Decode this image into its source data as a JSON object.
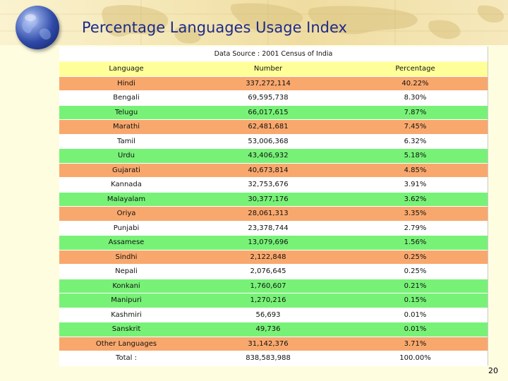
{
  "title": "Percentage Languages Usage Index",
  "source": "Data Source : 2001 Census of India",
  "columns": [
    "Language",
    "Number",
    "Percentage"
  ],
  "rows": [
    {
      "language": "Hindi",
      "number": "337,272,114",
      "percentage": "40.22%",
      "color": "#f9a86d"
    },
    {
      "language": "Bengali",
      "number": "69,595,738",
      "percentage": "8.30%",
      "color": "#ffffff"
    },
    {
      "language": "Telugu",
      "number": "66,017,615",
      "percentage": "7.87%",
      "color": "#77f277"
    },
    {
      "language": "Marathi",
      "number": "62,481,681",
      "percentage": "7.45%",
      "color": "#f9a86d"
    },
    {
      "language": "Tamil",
      "number": "53,006,368",
      "percentage": "6.32%",
      "color": "#ffffff"
    },
    {
      "language": "Urdu",
      "number": "43,406,932",
      "percentage": "5.18%",
      "color": "#77f277"
    },
    {
      "language": "Gujarati",
      "number": "40,673,814",
      "percentage": "4.85%",
      "color": "#f9a86d"
    },
    {
      "language": "Kannada",
      "number": "32,753,676",
      "percentage": "3.91%",
      "color": "#ffffff"
    },
    {
      "language": "Malayalam",
      "number": "30,377,176",
      "percentage": "3.62%",
      "color": "#77f277"
    },
    {
      "language": "Oriya",
      "number": "28,061,313",
      "percentage": "3.35%",
      "color": "#f9a86d"
    },
    {
      "language": "Punjabi",
      "number": "23,378,744",
      "percentage": "2.79%",
      "color": "#ffffff"
    },
    {
      "language": "Assamese",
      "number": "13,079,696",
      "percentage": "1.56%",
      "color": "#77f277"
    },
    {
      "language": "Sindhi",
      "number": "2,122,848",
      "percentage": "0.25%",
      "color": "#f9a86d"
    },
    {
      "language": "Nepali",
      "number": "2,076,645",
      "percentage": "0.25%",
      "color": "#ffffff"
    },
    {
      "language": "Konkani",
      "number": "1,760,607",
      "percentage": "0.21%",
      "color": "#77f277"
    },
    {
      "language": "Manipuri",
      "number": "1,270,216",
      "percentage": "0.15%",
      "color": "#77f277"
    },
    {
      "language": "Kashmiri",
      "number": "56,693",
      "percentage": "0.01%",
      "color": "#ffffff"
    },
    {
      "language": "Sanskrit",
      "number": "49,736",
      "percentage": "0.01%",
      "color": "#77f277"
    },
    {
      "language": "Other Languages",
      "number": "31,142,376",
      "percentage": "3.71%",
      "color": "#f9a86d"
    },
    {
      "language": "Total :",
      "number": "838,583,988",
      "percentage": "100.00%",
      "color": "#ffffff"
    }
  ],
  "page_number": "20"
}
